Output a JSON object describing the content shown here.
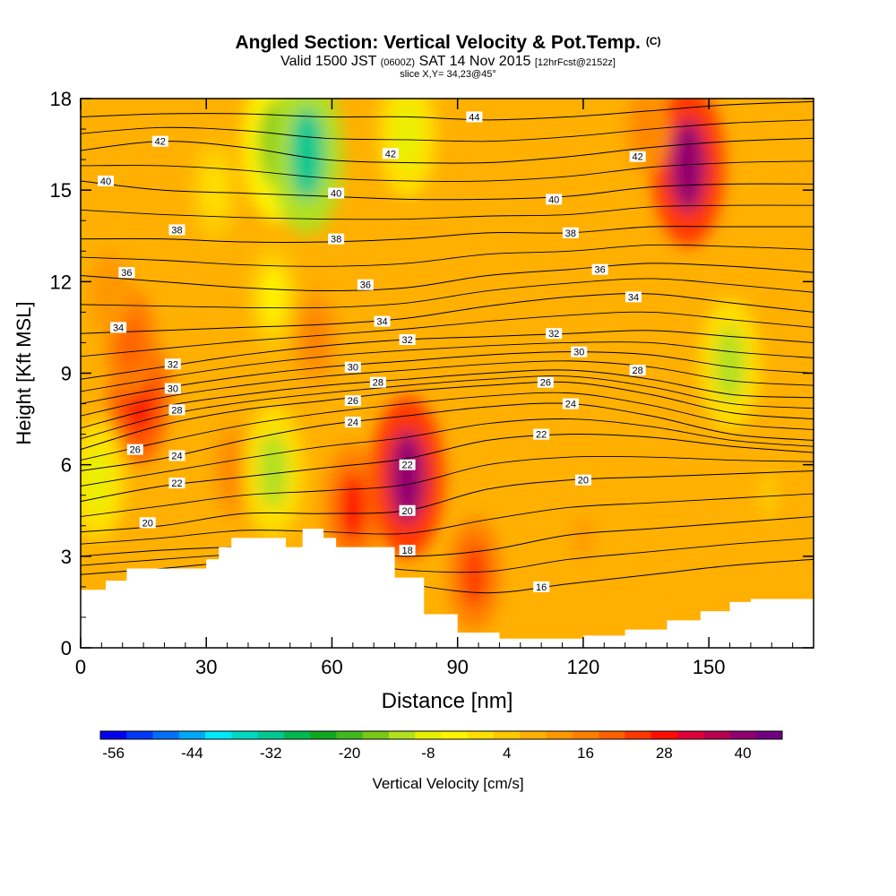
{
  "title": {
    "main": "Angled Section: Vertical Velocity & Pot.Temp.",
    "main_units": "(C)",
    "valid_prefix": "Valid 1500 JST",
    "valid_utc": "(0600Z)",
    "valid_date": "SAT 14 Nov 2015",
    "forecast": "[12hrFcst@2152z]",
    "slice": "slice X,Y= 34,23@45°"
  },
  "chart_data": {
    "type": "heatmap",
    "xlabel": "Distance [nm]",
    "ylabel": "Height [Kft MSL]",
    "xlim": [
      0,
      175
    ],
    "ylim": [
      0,
      18
    ],
    "x_ticks": [
      0,
      30,
      60,
      90,
      120,
      150
    ],
    "y_ticks": [
      0,
      3,
      6,
      9,
      12,
      15,
      18
    ],
    "colorbar": {
      "label": "Vertical Velocity [cm/s]",
      "min": -58,
      "step": 4,
      "tick_labels": [
        "-56",
        "-44",
        "-32",
        "-20",
        "-8",
        "4",
        "16",
        "28",
        "40"
      ],
      "tick_values": [
        -56,
        -44,
        -32,
        -20,
        -8,
        4,
        16,
        28,
        40
      ],
      "colors": [
        "#0000f0",
        "#0038f8",
        "#0070f8",
        "#00a8f8",
        "#00e8f8",
        "#00d8c0",
        "#00c890",
        "#00b850",
        "#10a820",
        "#40b820",
        "#78c818",
        "#b0e020",
        "#e8f000",
        "#fff400",
        "#ffe000",
        "#ffc800",
        "#ffb000",
        "#ff9800",
        "#ff8000",
        "#ff6000",
        "#ff3800",
        "#ff0e00",
        "#e0003a",
        "#b80052",
        "#920070",
        "#700082"
      ]
    },
    "terrain_profile": {
      "distance_nm": [
        0,
        6,
        11,
        20,
        30,
        33,
        36,
        45,
        49,
        53,
        58,
        61,
        65,
        75,
        82,
        90,
        100,
        110,
        120,
        130,
        140,
        148,
        150,
        155,
        160,
        175
      ],
      "height_kft": [
        1.9,
        2.2,
        2.6,
        2.6,
        2.9,
        3.3,
        3.6,
        3.6,
        3.3,
        3.9,
        3.6,
        3.3,
        3.3,
        2.3,
        1.1,
        0.5,
        0.3,
        0.3,
        0.4,
        0.6,
        0.9,
        1.2,
        1.2,
        1.5,
        1.6,
        1.6
      ]
    },
    "vertical_velocity_cells": [
      {
        "distance_nm": 14,
        "height_kft": 8.2,
        "value": 28
      },
      {
        "distance_nm": 12,
        "height_kft": 10.0,
        "value": 20
      },
      {
        "distance_nm": 7,
        "height_kft": 11.6,
        "value": 12
      },
      {
        "distance_nm": 4,
        "height_kft": 5.5,
        "value": -8
      },
      {
        "distance_nm": 26,
        "height_kft": 6.5,
        "value": 8
      },
      {
        "distance_nm": 37,
        "height_kft": 5.8,
        "value": 16
      },
      {
        "distance_nm": 46,
        "height_kft": 5.8,
        "value": -12
      },
      {
        "distance_nm": 46,
        "height_kft": 11.5,
        "value": -4
      },
      {
        "distance_nm": 47,
        "height_kft": 16.5,
        "value": -20
      },
      {
        "distance_nm": 54,
        "height_kft": 16.2,
        "value": -34
      },
      {
        "distance_nm": 56,
        "height_kft": 10.2,
        "value": 16
      },
      {
        "distance_nm": 65,
        "height_kft": 4.6,
        "value": 26
      },
      {
        "distance_nm": 78,
        "height_kft": 5.6,
        "value": 38
      },
      {
        "distance_nm": 78,
        "height_kft": 16.8,
        "value": -10
      },
      {
        "distance_nm": 94,
        "height_kft": 2.4,
        "value": 22
      },
      {
        "distance_nm": 120,
        "height_kft": 3.6,
        "value": 10
      },
      {
        "distance_nm": 133,
        "height_kft": 2.5,
        "value": 8
      },
      {
        "distance_nm": 145,
        "height_kft": 15.8,
        "value": 38
      },
      {
        "distance_nm": 135,
        "height_kft": 17.0,
        "value": 14
      },
      {
        "distance_nm": 155,
        "height_kft": 9.3,
        "value": -12
      },
      {
        "distance_nm": 164,
        "height_kft": 5.0,
        "value": 4
      },
      {
        "distance_nm": 100,
        "height_kft": 15.0,
        "value": 6
      },
      {
        "distance_nm": 32,
        "height_kft": 15.0,
        "value": -2
      }
    ],
    "isentropes": [
      {
        "value": 18,
        "label": "18",
        "label_at": {
          "distance_nm": 78,
          "height_kft": 3.2
        },
        "anchor_heights": [
          3.0,
          3.2,
          3.3,
          3.2,
          3.0,
          3.2,
          3.7,
          3.9,
          4.1,
          4.3
        ]
      },
      {
        "value": 16,
        "label": "16",
        "label_at": {
          "distance_nm": 110,
          "height_kft": 2.0
        },
        "anchor_heights": [
          2.4,
          2.6,
          2.8,
          2.6,
          2.1,
          1.8,
          2.1,
          2.4,
          2.7,
          2.9
        ]
      },
      {
        "value": 20,
        "label": "20",
        "label_at": {
          "distance_nm": 120,
          "height_kft": 5.5
        },
        "anchor_heights": [
          3.8,
          4.0,
          4.4,
          4.4,
          4.5,
          5.2,
          5.5,
          5.6,
          5.7,
          5.8
        ]
      },
      {
        "value": 22,
        "label": "22",
        "label_at": {
          "distance_nm": 110,
          "height_kft": 7.0
        },
        "anchor_heights": [
          4.8,
          5.3,
          5.6,
          5.9,
          6.2,
          6.8,
          7.0,
          6.9,
          6.6,
          6.4
        ]
      },
      {
        "value": 24,
        "label": "24",
        "label_at": {
          "distance_nm": 117,
          "height_kft": 8.0
        },
        "anchor_heights": [
          5.8,
          6.2,
          6.8,
          7.3,
          7.6,
          7.9,
          8.0,
          7.6,
          7.0,
          6.8
        ]
      },
      {
        "value": 26,
        "label": "26",
        "label_at": {
          "distance_nm": 111,
          "height_kft": 8.7
        },
        "anchor_heights": [
          6.5,
          7.3,
          7.8,
          8.1,
          8.4,
          8.6,
          8.7,
          8.3,
          7.7,
          7.5
        ]
      },
      {
        "value": 28,
        "label": "28",
        "label_at": {
          "distance_nm": 133,
          "height_kft": 9.1
        },
        "anchor_heights": [
          7.2,
          7.9,
          8.3,
          8.6,
          8.8,
          9.0,
          9.1,
          8.8,
          8.3,
          8.2
        ]
      },
      {
        "value": 30,
        "label": "30",
        "label_at": {
          "distance_nm": 119,
          "height_kft": 9.7
        },
        "anchor_heights": [
          8.0,
          8.5,
          8.9,
          9.2,
          9.4,
          9.6,
          9.7,
          9.6,
          9.2,
          9.0
        ]
      },
      {
        "value": 32,
        "label": "32",
        "label_at": {
          "distance_nm": 113,
          "height_kft": 10.3
        },
        "anchor_heights": [
          8.8,
          9.2,
          9.6,
          9.9,
          10.1,
          10.2,
          10.3,
          10.4,
          10.2,
          10.0
        ]
      },
      {
        "value": 34,
        "label": "34",
        "label_at": {
          "distance_nm": 132,
          "height_kft": 11.5
        },
        "anchor_heights": [
          10.3,
          10.4,
          10.5,
          10.6,
          10.8,
          11.2,
          11.5,
          11.6,
          11.3,
          11.0
        ]
      },
      {
        "value": 36,
        "label": "36",
        "label_at": {
          "distance_nm": 124,
          "height_kft": 12.4
        },
        "anchor_heights": [
          12.2,
          12.0,
          11.8,
          11.7,
          11.8,
          12.2,
          12.4,
          12.6,
          12.5,
          12.3
        ]
      },
      {
        "value": 38,
        "label": "38",
        "label_at": {
          "distance_nm": 117,
          "height_kft": 13.6
        },
        "anchor_heights": [
          13.4,
          13.4,
          13.3,
          13.3,
          13.4,
          13.6,
          13.6,
          13.8,
          13.8,
          13.8
        ]
      },
      {
        "value": 40,
        "label": "40",
        "label_at": {
          "distance_nm": 113,
          "height_kft": 14.7
        },
        "anchor_heights": [
          15.3,
          15.0,
          14.9,
          14.8,
          14.7,
          14.7,
          14.8,
          15.1,
          15.2,
          15.2
        ]
      },
      {
        "value": 42,
        "label": "42",
        "label_at": {
          "distance_nm": 133,
          "height_kft": 16.1
        },
        "anchor_heights": [
          16.3,
          16.6,
          16.4,
          16.0,
          15.9,
          15.9,
          16.1,
          16.4,
          16.6,
          16.7
        ]
      },
      {
        "value": 44,
        "label": "44",
        "label_at": {
          "distance_nm": 94,
          "height_kft": 17.4
        },
        "anchor_heights": [
          17.4,
          17.5,
          17.5,
          17.4,
          17.4,
          17.3,
          17.4,
          17.6,
          17.8,
          17.9
        ]
      }
    ],
    "extra_labels": [
      {
        "label": "42",
        "distance_nm": 19,
        "height_kft": 16.6
      },
      {
        "label": "42",
        "distance_nm": 74,
        "height_kft": 16.2
      },
      {
        "label": "40",
        "distance_nm": 6,
        "height_kft": 15.3
      },
      {
        "label": "40",
        "distance_nm": 61,
        "height_kft": 14.9
      },
      {
        "label": "38",
        "distance_nm": 23,
        "height_kft": 13.7
      },
      {
        "label": "38",
        "distance_nm": 61,
        "height_kft": 13.4
      },
      {
        "label": "36",
        "distance_nm": 11,
        "height_kft": 12.3
      },
      {
        "label": "36",
        "distance_nm": 68,
        "height_kft": 11.9
      },
      {
        "label": "34",
        "distance_nm": 9,
        "height_kft": 10.5
      },
      {
        "label": "34",
        "distance_nm": 72,
        "height_kft": 10.7
      },
      {
        "label": "32",
        "distance_nm": 22,
        "height_kft": 9.3
      },
      {
        "label": "32",
        "distance_nm": 78,
        "height_kft": 10.1
      },
      {
        "label": "30",
        "distance_nm": 22,
        "height_kft": 8.5
      },
      {
        "label": "30",
        "distance_nm": 65,
        "height_kft": 9.2
      },
      {
        "label": "28",
        "distance_nm": 23,
        "height_kft": 7.8
      },
      {
        "label": "28",
        "distance_nm": 71,
        "height_kft": 8.7
      },
      {
        "label": "26",
        "distance_nm": 13,
        "height_kft": 6.5
      },
      {
        "label": "26",
        "distance_nm": 65,
        "height_kft": 8.1
      },
      {
        "label": "24",
        "distance_nm": 23,
        "height_kft": 6.3
      },
      {
        "label": "24",
        "distance_nm": 65,
        "height_kft": 7.4
      },
      {
        "label": "22",
        "distance_nm": 23,
        "height_kft": 5.4
      },
      {
        "label": "22",
        "distance_nm": 78,
        "height_kft": 6.0
      },
      {
        "label": "20",
        "distance_nm": 16,
        "height_kft": 4.1
      },
      {
        "label": "20",
        "distance_nm": 78,
        "height_kft": 4.5
      }
    ]
  }
}
